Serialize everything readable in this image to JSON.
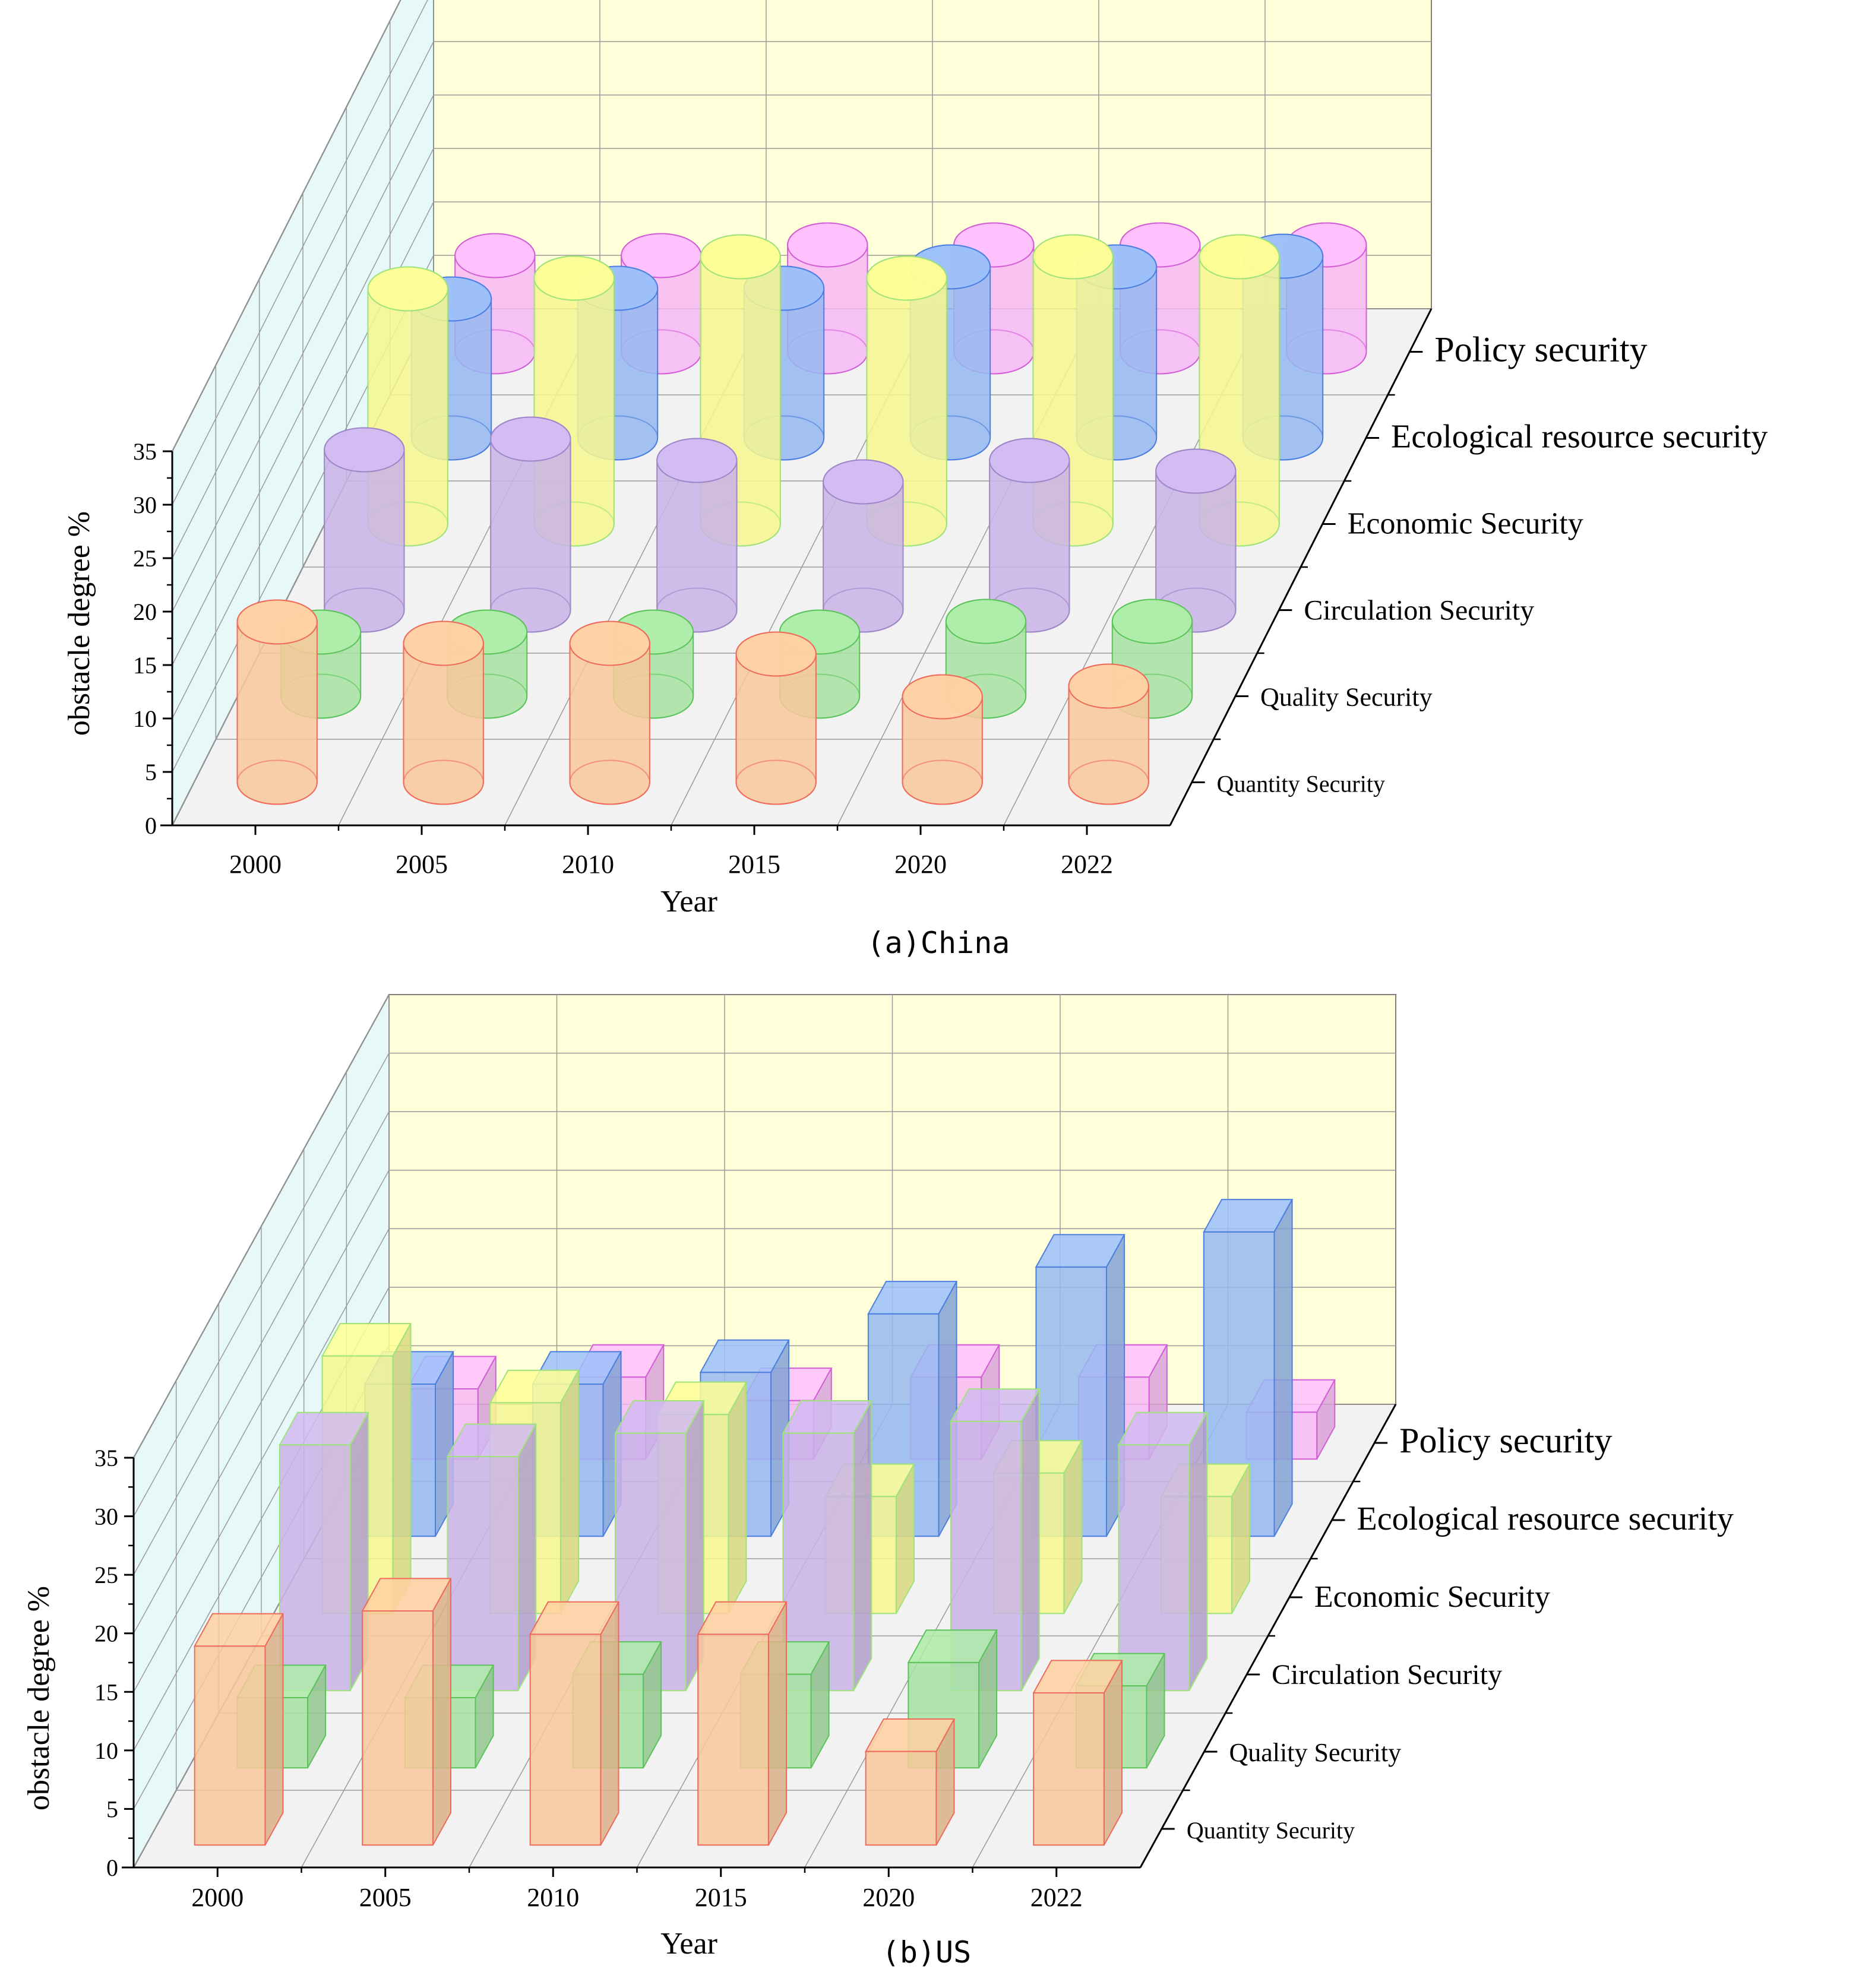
{
  "chart_data": [
    {
      "type": "bar",
      "subtype": "3d-cylinder",
      "caption": "(a)China",
      "xlabel": "Year",
      "ylabel": "obstacle degree %",
      "ylim": [
        0,
        35
      ],
      "yticks": [
        "0",
        "5",
        "10",
        "15",
        "20",
        "25",
        "30",
        "35"
      ],
      "categories": [
        "2000",
        "2005",
        "2010",
        "2015",
        "2020",
        "2022"
      ],
      "series": [
        {
          "name": "Quantity Security",
          "values": [
            15,
            13,
            13,
            12,
            8,
            9
          ],
          "color": "#f9c89b",
          "edge": "#ef6a5a"
        },
        {
          "name": "Quality Security",
          "values": [
            6,
            6,
            6,
            6,
            7,
            7
          ],
          "color": "#a6e3a1",
          "edge": "#5cc35a"
        },
        {
          "name": "Circulation Security",
          "values": [
            15,
            16,
            14,
            12,
            14,
            13
          ],
          "color": "#c9b3e8",
          "edge": "#9e86c8"
        },
        {
          "name": "Economic Security",
          "values": [
            22,
            23,
            25,
            23,
            25,
            25
          ],
          "color": "#f7f78f",
          "edge": "#9ee37a"
        },
        {
          "name": "Ecological resource security",
          "values": [
            13,
            14,
            14,
            16,
            16,
            17
          ],
          "color": "#95b8f0",
          "edge": "#4c7fe0"
        },
        {
          "name": "Policy security",
          "values": [
            9,
            9,
            10,
            10,
            10,
            10
          ],
          "color": "#f7b8f5",
          "edge": "#d25fd5"
        }
      ],
      "depth_labels": [
        "Policy security",
        "Ecological resource security",
        "Economic Security",
        "Circulation Security",
        "Quality Security",
        "Quantity Security"
      ]
    },
    {
      "type": "bar",
      "subtype": "3d-box",
      "caption": "(b)US",
      "xlabel": "Year",
      "ylabel": "obstacle degree %",
      "ylim": [
        0,
        35
      ],
      "yticks": [
        "0",
        "5",
        "10",
        "15",
        "20",
        "25",
        "30",
        "35"
      ],
      "categories": [
        "2000",
        "2005",
        "2010",
        "2015",
        "2020",
        "2022"
      ],
      "series": [
        {
          "name": "Quantity Security",
          "values": [
            17,
            20,
            18,
            18,
            8,
            13
          ],
          "color": "#f9c89b",
          "edge": "#ef6a5a"
        },
        {
          "name": "Quality Security",
          "values": [
            6,
            6,
            8,
            8,
            9,
            7
          ],
          "color": "#a6e3a1",
          "edge": "#5cc35a"
        },
        {
          "name": "Circulation Security",
          "values": [
            21,
            20,
            22,
            22,
            23,
            21
          ],
          "color": "#c9b3e8",
          "edge": "#9ee37a"
        },
        {
          "name": "Economic Security",
          "values": [
            22,
            18,
            17,
            10,
            12,
            10
          ],
          "color": "#f7f78f",
          "edge": "#9ee37a"
        },
        {
          "name": "Ecological resource security",
          "values": [
            13,
            13,
            14,
            19,
            23,
            26
          ],
          "color": "#95b8f0",
          "edge": "#4c7fe0"
        },
        {
          "name": "Policy security",
          "values": [
            6,
            7,
            5,
            7,
            7,
            4
          ],
          "color": "#f7b8f5",
          "edge": "#d25fd5"
        }
      ],
      "depth_labels": [
        "Policy security",
        "Ecological resource security",
        "Economic Security",
        "Circulation Security",
        "Quality Security",
        "Quantity Security"
      ]
    }
  ]
}
